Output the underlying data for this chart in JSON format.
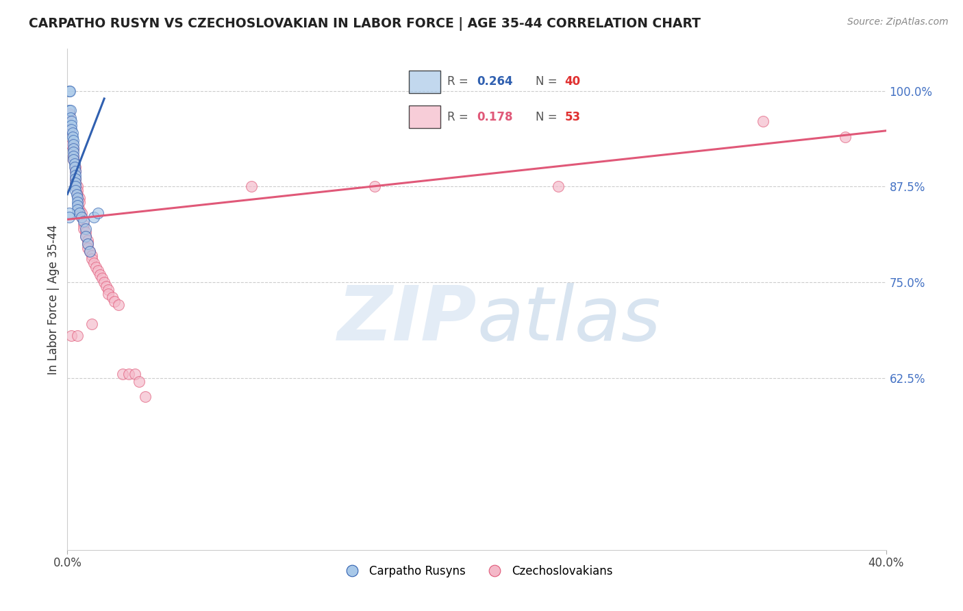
{
  "title": "CARPATHO RUSYN VS CZECHOSLOVAKIAN IN LABOR FORCE | AGE 35-44 CORRELATION CHART",
  "source": "Source: ZipAtlas.com",
  "ylabel": "In Labor Force | Age 35-44",
  "xlim": [
    0.0,
    0.4
  ],
  "ylim": [
    0.4,
    1.055
  ],
  "yticks": [
    0.625,
    0.75,
    0.875,
    1.0
  ],
  "ytick_labels": [
    "62.5%",
    "75.0%",
    "87.5%",
    "100.0%"
  ],
  "blue_color": "#a8c8e8",
  "pink_color": "#f4b8c8",
  "blue_line_color": "#3060b0",
  "pink_line_color": "#e05878",
  "R_blue": 0.264,
  "N_blue": 40,
  "R_pink": 0.178,
  "N_pink": 53,
  "legend_label_blue": "Carpatho Rusyns",
  "legend_label_pink": "Czechoslovakians",
  "blue_x": [
    0.0008,
    0.0012,
    0.0008,
    0.0015,
    0.0015,
    0.002,
    0.002,
    0.002,
    0.0025,
    0.0025,
    0.003,
    0.003,
    0.003,
    0.003,
    0.003,
    0.003,
    0.0035,
    0.0035,
    0.004,
    0.004,
    0.004,
    0.004,
    0.004,
    0.004,
    0.0045,
    0.005,
    0.005,
    0.005,
    0.005,
    0.006,
    0.007,
    0.008,
    0.009,
    0.009,
    0.01,
    0.011,
    0.013,
    0.015,
    0.0008,
    0.0008
  ],
  "blue_y": [
    1.0,
    1.0,
    0.975,
    0.975,
    0.965,
    0.96,
    0.955,
    0.95,
    0.945,
    0.94,
    0.935,
    0.93,
    0.925,
    0.92,
    0.915,
    0.91,
    0.905,
    0.9,
    0.895,
    0.89,
    0.885,
    0.88,
    0.875,
    0.87,
    0.865,
    0.86,
    0.855,
    0.85,
    0.845,
    0.84,
    0.835,
    0.83,
    0.82,
    0.81,
    0.8,
    0.79,
    0.835,
    0.84,
    0.84,
    0.835
  ],
  "pink_x": [
    0.001,
    0.001,
    0.002,
    0.003,
    0.003,
    0.003,
    0.004,
    0.004,
    0.004,
    0.004,
    0.005,
    0.005,
    0.005,
    0.006,
    0.006,
    0.006,
    0.007,
    0.007,
    0.008,
    0.008,
    0.009,
    0.009,
    0.01,
    0.01,
    0.01,
    0.011,
    0.012,
    0.012,
    0.013,
    0.014,
    0.015,
    0.016,
    0.017,
    0.018,
    0.019,
    0.02,
    0.02,
    0.022,
    0.023,
    0.025,
    0.027,
    0.03,
    0.033,
    0.035,
    0.038,
    0.09,
    0.15,
    0.24,
    0.34,
    0.38,
    0.002,
    0.005,
    0.012
  ],
  "pink_y": [
    0.97,
    0.95,
    0.93,
    0.925,
    0.915,
    0.91,
    0.9,
    0.895,
    0.885,
    0.88,
    0.875,
    0.87,
    0.865,
    0.86,
    0.855,
    0.845,
    0.84,
    0.835,
    0.825,
    0.82,
    0.815,
    0.81,
    0.805,
    0.8,
    0.795,
    0.79,
    0.785,
    0.78,
    0.775,
    0.77,
    0.765,
    0.76,
    0.755,
    0.75,
    0.745,
    0.74,
    0.735,
    0.73,
    0.725,
    0.72,
    0.63,
    0.63,
    0.63,
    0.62,
    0.6,
    0.875,
    0.875,
    0.875,
    0.96,
    0.94,
    0.68,
    0.68,
    0.695
  ],
  "blue_trend_x": [
    0.0,
    0.018
  ],
  "blue_trend_y": [
    0.865,
    0.99
  ],
  "pink_trend_x": [
    0.0,
    0.4
  ],
  "pink_trend_y": [
    0.832,
    0.948
  ]
}
